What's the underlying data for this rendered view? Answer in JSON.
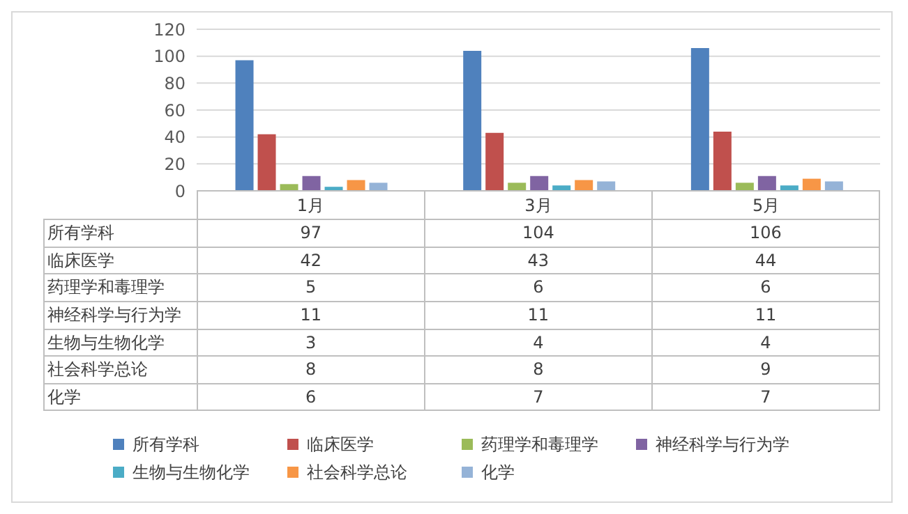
{
  "chart_data": {
    "type": "bar",
    "categories": [
      "1月",
      "3月",
      "5月"
    ],
    "series": [
      {
        "name": "所有学科",
        "color": "#4f81bd",
        "values": [
          97,
          104,
          106
        ]
      },
      {
        "name": "临床医学",
        "color": "#c0504d",
        "values": [
          42,
          43,
          44
        ]
      },
      {
        "name": "药理学和毒理学",
        "color": "#9bbb59",
        "values": [
          5,
          6,
          6
        ]
      },
      {
        "name": "神经科学与行为学",
        "color": "#8064a2",
        "values": [
          11,
          11,
          11
        ]
      },
      {
        "name": "生物与生物化学",
        "color": "#4bacc6",
        "values": [
          3,
          4,
          4
        ]
      },
      {
        "name": "社会科学总论",
        "color": "#f79646",
        "values": [
          8,
          8,
          9
        ]
      },
      {
        "name": "化学",
        "color": "#95b3d7",
        "values": [
          6,
          7,
          7
        ]
      }
    ],
    "ylim": [
      0,
      120
    ],
    "yticks": [
      0,
      20,
      40,
      60,
      80,
      100,
      120
    ],
    "grid": "y",
    "legend": "bottom",
    "data_labels": true
  }
}
